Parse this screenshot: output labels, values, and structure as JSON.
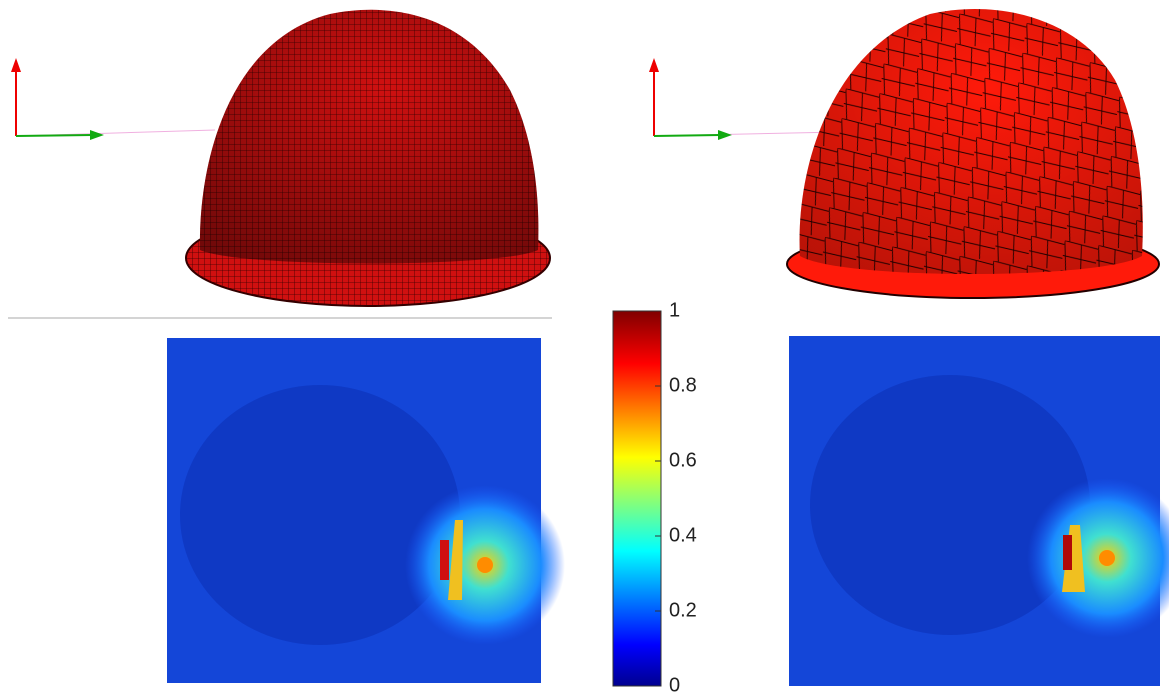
{
  "chart_data": {
    "type": "colorbar",
    "ylim": [
      0,
      1
    ],
    "yticks": [
      0,
      0.2,
      0.4,
      0.6,
      0.8,
      1
    ]
  }
}
